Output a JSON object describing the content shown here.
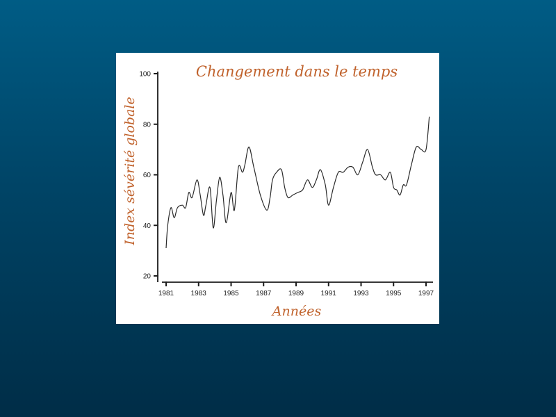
{
  "slide": {
    "background_top": "#005c85",
    "background_bottom": "#002d47",
    "panel_color": "#ffffff"
  },
  "chart_data": {
    "type": "line",
    "title": "Changement dans le temps",
    "xlabel": "Années",
    "ylabel": "Index sévérité globale",
    "xlim": [
      1981,
      1997
    ],
    "ylim": [
      20,
      100
    ],
    "x_ticks": [
      "1981",
      "1983",
      "1985",
      "1987",
      "1989",
      "1991",
      "1993",
      "1995",
      "1997"
    ],
    "y_ticks": [
      "20",
      "40",
      "60",
      "80",
      "100"
    ],
    "grid": false,
    "legend": "none",
    "label_color": "#c0622c",
    "line_color": "#2a2a2a",
    "x": [
      1981.0,
      1981.1,
      1981.3,
      1981.5,
      1981.7,
      1982.0,
      1982.2,
      1982.4,
      1982.6,
      1982.9,
      1983.1,
      1983.3,
      1983.45,
      1983.7,
      1983.9,
      1984.1,
      1984.3,
      1984.5,
      1984.7,
      1985.0,
      1985.2,
      1985.45,
      1985.7,
      1985.85,
      1986.1,
      1986.4,
      1986.8,
      1987.2,
      1987.4,
      1987.55,
      1987.8,
      1988.1,
      1988.3,
      1988.5,
      1988.8,
      1989.1,
      1989.4,
      1989.7,
      1990.0,
      1990.25,
      1990.5,
      1990.8,
      1991.0,
      1991.3,
      1991.6,
      1991.9,
      1992.2,
      1992.5,
      1992.8,
      1993.1,
      1993.4,
      1993.7,
      1993.9,
      1994.2,
      1994.5,
      1994.8,
      1995.0,
      1995.2,
      1995.4,
      1995.6,
      1995.8,
      1996.1,
      1996.4,
      1996.7,
      1997.0,
      1997.2
    ],
    "y": [
      31,
      40,
      47,
      43,
      47,
      48,
      47,
      53,
      51,
      58,
      52,
      44,
      48,
      55,
      39,
      50,
      59,
      52,
      41,
      53,
      46,
      63,
      61,
      64,
      71,
      63,
      52,
      46,
      51,
      58,
      61,
      62,
      55,
      51,
      52,
      53,
      54,
      58,
      55,
      58,
      62,
      56,
      48,
      55,
      61,
      61,
      63,
      63,
      60,
      65,
      70,
      63,
      60,
      60,
      58,
      61,
      55,
      54,
      52,
      56,
      56,
      64,
      71,
      70,
      70,
      83
    ]
  }
}
